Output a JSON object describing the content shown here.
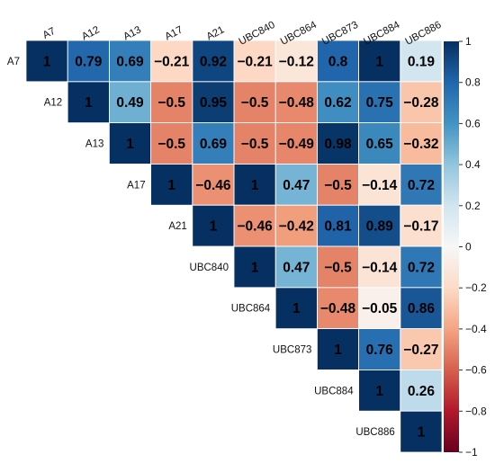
{
  "chart_data": {
    "type": "heatmap",
    "variables": [
      "A7",
      "A12",
      "A13",
      "A17",
      "A21",
      "UBC840",
      "UBC864",
      "UBC873",
      "UBC884",
      "UBC886"
    ],
    "matrix": [
      [
        "1",
        "0.79",
        "0.69",
        "−0.21",
        "0.92",
        "−0.21",
        "−0.12",
        "0.8",
        "1",
        "0.19"
      ],
      [
        null,
        "1",
        "0.49",
        "−0.5",
        "0.95",
        "−0.5",
        "−0.48",
        "0.62",
        "0.75",
        "−0.28"
      ],
      [
        null,
        null,
        "1",
        "−0.5",
        "0.69",
        "−0.5",
        "−0.49",
        "0.98",
        "0.65",
        "−0.32"
      ],
      [
        null,
        null,
        null,
        "1",
        "−0.46",
        "1",
        "0.47",
        "−0.5",
        "−0.14",
        "0.72"
      ],
      [
        null,
        null,
        null,
        null,
        "1",
        "−0.46",
        "−0.42",
        "0.81",
        "0.89",
        "−0.17"
      ],
      [
        null,
        null,
        null,
        null,
        null,
        "1",
        "0.47",
        "−0.5",
        "−0.14",
        "0.72"
      ],
      [
        null,
        null,
        null,
        null,
        null,
        null,
        "1",
        "−0.48",
        "−0.05",
        "0.86"
      ],
      [
        null,
        null,
        null,
        null,
        null,
        null,
        null,
        "1",
        "0.76",
        "−0.27"
      ],
      [
        null,
        null,
        null,
        null,
        null,
        null,
        null,
        null,
        "1",
        "0.26"
      ],
      [
        null,
        null,
        null,
        null,
        null,
        null,
        null,
        null,
        null,
        "1"
      ]
    ],
    "colorbar": {
      "range": [
        -1,
        1
      ],
      "ticks": [
        "1",
        "0.8",
        "0.6",
        "0.4",
        "0.2",
        "0",
        "−0.2",
        "−0.4",
        "−0.6",
        "−0.8",
        "−1"
      ],
      "colors": [
        "#67001f",
        "#b2182b",
        "#d6604d",
        "#f4a582",
        "#fddbc7",
        "#f7f7f7",
        "#d1e5f0",
        "#92c5de",
        "#4393c3",
        "#2166ac",
        "#053061"
      ]
    }
  }
}
